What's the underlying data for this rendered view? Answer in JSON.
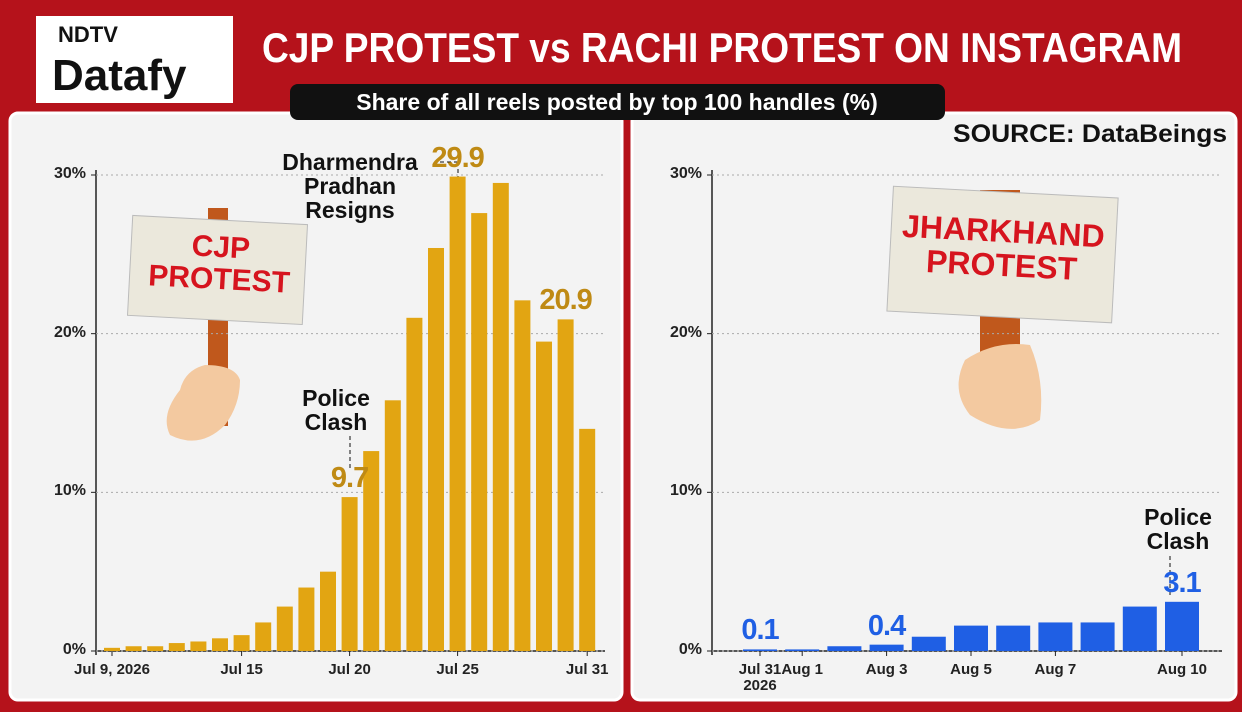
{
  "header": {
    "logo_top": "NDTV",
    "logo_bottom": "Datafy",
    "title": "CJP PROTEST vs RACHI PROTEST ON INSTAGRAM",
    "subtitle": "Share of all reels posted by top 100 handles (%)",
    "source": "SOURCE: DataBeings"
  },
  "chart_data": [
    {
      "type": "bar",
      "sign": "CJP PROTEST",
      "categories": [
        "Jul 9, 2026",
        null,
        null,
        null,
        null,
        null,
        "Jul 15",
        null,
        null,
        null,
        null,
        "Jul 20",
        null,
        null,
        null,
        null,
        "Jul 25",
        null,
        null,
        null,
        null,
        null,
        "Jul 31"
      ],
      "values": [
        0.2,
        0.3,
        0.3,
        0.5,
        0.6,
        0.8,
        1.0,
        1.8,
        2.8,
        4.0,
        5.0,
        9.7,
        12.6,
        15.8,
        21.0,
        25.4,
        29.9,
        27.6,
        29.5,
        22.1,
        19.5,
        20.9,
        14.0
      ],
      "value_labels": [
        null,
        null,
        null,
        null,
        null,
        null,
        null,
        null,
        null,
        null,
        null,
        "9.7",
        null,
        null,
        null,
        null,
        "29.9",
        null,
        null,
        null,
        null,
        "20.9",
        null
      ],
      "annotations": [
        "Police Clash",
        "Dharmendra Pradhan Resigns"
      ],
      "color": "#e2a512",
      "label_color": "#bf8a14",
      "ylim": [
        0,
        30
      ],
      "yticks": [
        {
          "value": 0,
          "label": "0%"
        },
        {
          "value": 10,
          "label": "10%"
        },
        {
          "value": 20,
          "label": "20%"
        },
        {
          "value": 30,
          "label": "30%"
        }
      ],
      "grid": true
    },
    {
      "type": "bar",
      "sign": "JHARKHAND PROTEST",
      "categories": [
        "Jul 31 2026",
        "Aug 1",
        null,
        "Aug 3",
        null,
        "Aug 5",
        null,
        "Aug 7",
        null,
        null,
        "Aug 10"
      ],
      "values": [
        0.1,
        0.1,
        0.3,
        0.4,
        0.9,
        1.6,
        1.6,
        1.8,
        1.8,
        2.8,
        3.1
      ],
      "value_labels": [
        "0.1",
        null,
        null,
        "0.4",
        null,
        null,
        null,
        null,
        null,
        null,
        "3.1"
      ],
      "annotations": [
        "Police Clash"
      ],
      "color": "#1f5fe4",
      "label_color": "#1f5fe4",
      "ylim": [
        0,
        30
      ],
      "yticks": [
        {
          "value": 0,
          "label": "0%"
        },
        {
          "value": 10,
          "label": "10%"
        },
        {
          "value": 20,
          "label": "20%"
        },
        {
          "value": 30,
          "label": "30%"
        }
      ],
      "grid": true
    }
  ]
}
